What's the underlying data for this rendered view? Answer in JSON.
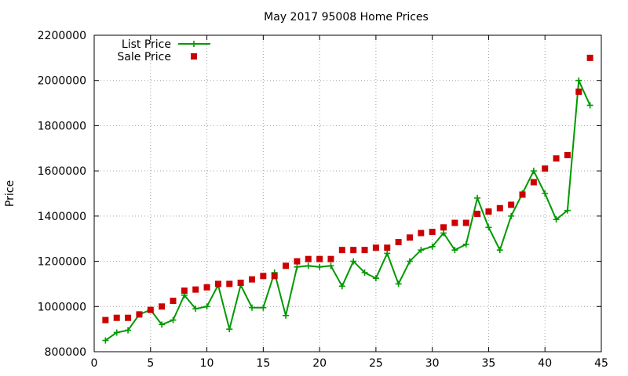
{
  "chart_data": {
    "type": "line",
    "title": "May 2017 95008 Home Prices",
    "xlabel": "",
    "ylabel": "Price",
    "xlim": [
      0,
      45
    ],
    "ylim": [
      800000,
      2200000
    ],
    "xticks": [
      0,
      5,
      10,
      15,
      20,
      25,
      30,
      35,
      40,
      45
    ],
    "yticks": [
      800000,
      1000000,
      1200000,
      1400000,
      1600000,
      1800000,
      2000000,
      2200000
    ],
    "grid": true,
    "legend_position": "top-left",
    "x": [
      1,
      2,
      3,
      4,
      5,
      6,
      7,
      8,
      9,
      10,
      11,
      12,
      13,
      14,
      15,
      16,
      17,
      18,
      19,
      20,
      21,
      22,
      23,
      24,
      25,
      26,
      27,
      28,
      29,
      30,
      31,
      32,
      33,
      34,
      35,
      36,
      37,
      38,
      39,
      40,
      41,
      42,
      43,
      44
    ],
    "series": [
      {
        "name": "List Price",
        "style": "linespoints",
        "color": "#009900",
        "values": [
          850000,
          885000,
          895000,
          965000,
          985000,
          920000,
          940000,
          1050000,
          990000,
          1000000,
          1095000,
          900000,
          1095000,
          995000,
          995000,
          1150000,
          960000,
          1175000,
          1180000,
          1175000,
          1180000,
          1090000,
          1200000,
          1150000,
          1125000,
          1235000,
          1100000,
          1200000,
          1250000,
          1265000,
          1325000,
          1250000,
          1275000,
          1480000,
          1350000,
          1250000,
          1400000,
          1500000,
          1600000,
          1500000,
          1385000,
          1425000,
          2000000,
          1890000
        ]
      },
      {
        "name": "Sale Price",
        "style": "points",
        "color": "#cc0000",
        "values": [
          940000,
          950000,
          950000,
          965000,
          985000,
          1000000,
          1025000,
          1070000,
          1075000,
          1085000,
          1100000,
          1100000,
          1105000,
          1120000,
          1135000,
          1135000,
          1180000,
          1200000,
          1210000,
          1210000,
          1210000,
          1250000,
          1250000,
          1250000,
          1260000,
          1260000,
          1285000,
          1305000,
          1325000,
          1330000,
          1350000,
          1370000,
          1370000,
          1410000,
          1420000,
          1435000,
          1450000,
          1495000,
          1550000,
          1610000,
          1655000,
          1670000,
          1950000,
          2100000
        ]
      }
    ]
  }
}
